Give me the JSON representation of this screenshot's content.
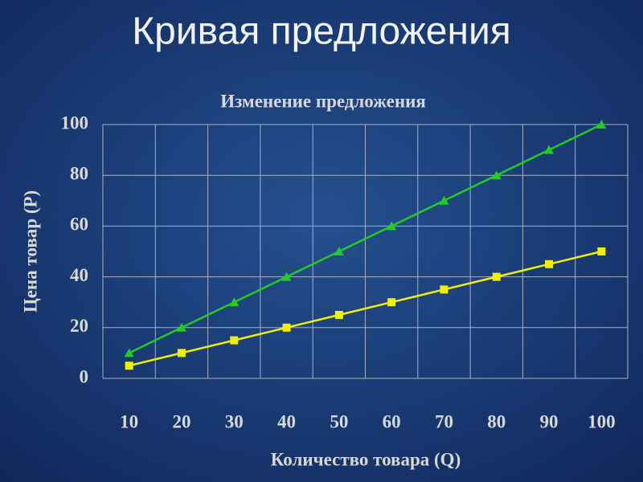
{
  "slide": {
    "title": "Кривая предложения"
  },
  "chart_data": {
    "type": "line",
    "title": "Изменение предложения",
    "x_label": "Количество товара (Q)",
    "y_label": "Цена товар (P)",
    "categories": [
      "10",
      "20",
      "30",
      "40",
      "50",
      "60",
      "70",
      "80",
      "90",
      "100"
    ],
    "series": [
      {
        "color": "#22cc22",
        "marker": "triangle",
        "values": [
          10,
          20,
          30,
          40,
          50,
          60,
          70,
          80,
          90,
          100
        ]
      },
      {
        "color": "#f0f000",
        "marker": "square",
        "values": [
          5,
          10,
          15,
          20,
          25,
          30,
          35,
          40,
          45,
          50
        ]
      }
    ],
    "ylim": [
      0,
      100
    ],
    "yticks": [
      0,
      20,
      40,
      60,
      80,
      100
    ],
    "grid": true
  }
}
